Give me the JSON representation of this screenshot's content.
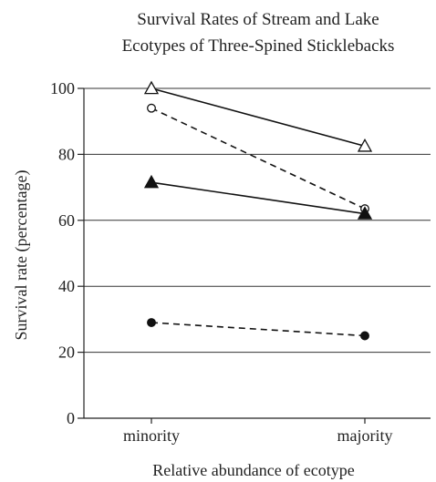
{
  "chart_data": {
    "type": "line",
    "title_lines": [
      "Survival Rates of Stream and Lake",
      "Ecotypes of Three-Spined Sticklebacks"
    ],
    "xlabel": "Relative abundance of ecotype",
    "ylabel": "Survival rate (percentage)",
    "categories": [
      "minority",
      "majority"
    ],
    "ylim": [
      0,
      100
    ],
    "yticks": [
      0,
      20,
      40,
      60,
      80,
      100
    ],
    "grid": "horizontal",
    "series": [
      {
        "marker": "open-triangle",
        "line": "solid",
        "values": [
          100,
          82.5
        ]
      },
      {
        "marker": "open-circle",
        "line": "dashed",
        "values": [
          94,
          63.5
        ]
      },
      {
        "marker": "filled-triangle",
        "line": "solid",
        "values": [
          71.5,
          62
        ]
      },
      {
        "marker": "filled-circle",
        "line": "dashed",
        "values": [
          29,
          25
        ]
      }
    ]
  }
}
